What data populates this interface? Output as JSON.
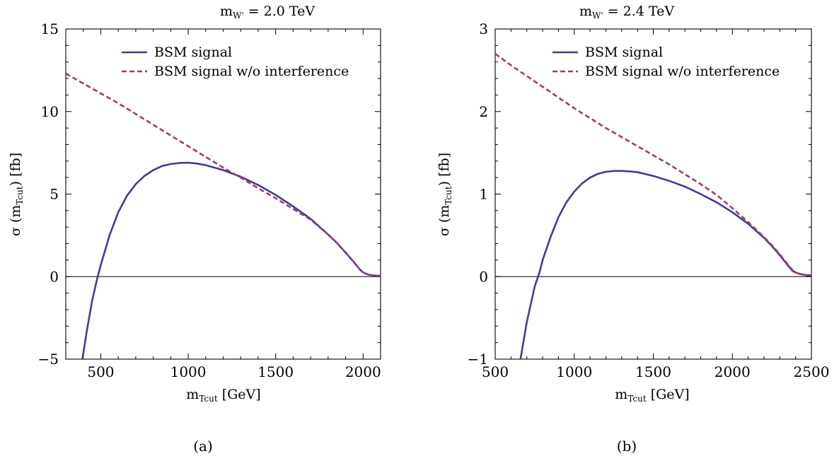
{
  "chart_data": [
    {
      "type": "line",
      "title": "m_W' = 2.0 TeV",
      "title_main": "m",
      "title_sub": "W'",
      "title_rest": " = 2.0 TeV",
      "xlabel_main": "m",
      "xlabel_sub": "Tcut",
      "xlabel_rest": " [GeV]",
      "ylabel_pre": "σ (m",
      "ylabel_sub": "Tcut",
      "ylabel_post": ")  [fb]",
      "xlim": [
        300,
        2100
      ],
      "ylim": [
        -5,
        15
      ],
      "xticks": [
        500,
        1000,
        1500,
        2000
      ],
      "yticks": [
        -5,
        0,
        5,
        10,
        15
      ],
      "ytick_labels": [
        "−5",
        "0",
        "5",
        "10",
        "15"
      ],
      "legend_position": "top-right",
      "caption": "(a)",
      "series": [
        {
          "name": "BSM signal",
          "style": "solid",
          "color": "#3d3d99",
          "x": [
            395,
            420,
            450,
            480,
            500,
            550,
            600,
            650,
            700,
            750,
            800,
            850,
            900,
            950,
            1000,
            1050,
            1100,
            1200,
            1300,
            1400,
            1500,
            1600,
            1700,
            1800,
            1850,
            1900,
            1950,
            1980,
            2000,
            2030,
            2060,
            2100
          ],
          "y": [
            -5.0,
            -3.3,
            -1.5,
            -0.1,
            0.7,
            2.5,
            3.9,
            4.9,
            5.6,
            6.1,
            6.45,
            6.7,
            6.82,
            6.88,
            6.9,
            6.85,
            6.75,
            6.45,
            6.05,
            5.55,
            4.95,
            4.25,
            3.5,
            2.55,
            2.05,
            1.45,
            0.85,
            0.45,
            0.25,
            0.12,
            0.07,
            0.05
          ]
        },
        {
          "name": "BSM signal w/o interference",
          "style": "dashed",
          "color": "#9e3d6e",
          "x": [
            300,
            400,
            500,
            600,
            700,
            800,
            900,
            1000,
            1100,
            1200,
            1300,
            1400,
            1500,
            1600,
            1700,
            1800,
            1850,
            1900,
            1950,
            1980,
            2000,
            2030,
            2060,
            2100
          ],
          "y": [
            12.3,
            11.7,
            11.1,
            10.5,
            9.85,
            9.2,
            8.55,
            7.9,
            7.25,
            6.6,
            6.0,
            5.35,
            4.75,
            4.1,
            3.45,
            2.55,
            2.05,
            1.45,
            0.85,
            0.45,
            0.25,
            0.12,
            0.07,
            0.05
          ]
        }
      ]
    },
    {
      "type": "line",
      "title": "m_W' = 2.4 TeV",
      "title_main": "m",
      "title_sub": "W'",
      "title_rest": " = 2.4 TeV",
      "xlabel_main": "m",
      "xlabel_sub": "Tcut",
      "xlabel_rest": " [GeV]",
      "ylabel_pre": "σ (m",
      "ylabel_sub": "Tcut",
      "ylabel_post": ")  [fb]",
      "xlim": [
        500,
        2500
      ],
      "ylim": [
        -1,
        3
      ],
      "xticks": [
        500,
        1000,
        1500,
        2000,
        2500
      ],
      "yticks": [
        -1,
        0,
        1,
        2,
        3
      ],
      "ytick_labels": [
        "−1",
        "0",
        "1",
        "2",
        "3"
      ],
      "legend_position": "top-right",
      "caption": "(b)",
      "series": [
        {
          "name": "BSM signal",
          "style": "solid",
          "color": "#3d3d99",
          "x": [
            660,
            700,
            750,
            780,
            800,
            850,
            900,
            950,
            1000,
            1050,
            1100,
            1150,
            1200,
            1250,
            1300,
            1350,
            1400,
            1500,
            1600,
            1700,
            1800,
            1900,
            2000,
            2100,
            2200,
            2250,
            2300,
            2350,
            2380,
            2400,
            2430,
            2460,
            2500
          ],
          "y": [
            -1.0,
            -0.55,
            -0.12,
            0.05,
            0.2,
            0.48,
            0.72,
            0.9,
            1.03,
            1.13,
            1.2,
            1.245,
            1.27,
            1.28,
            1.28,
            1.275,
            1.265,
            1.22,
            1.16,
            1.09,
            1.0,
            0.9,
            0.78,
            0.64,
            0.47,
            0.37,
            0.26,
            0.14,
            0.07,
            0.05,
            0.03,
            0.02,
            0.015
          ]
        },
        {
          "name": "BSM signal w/o interference",
          "style": "dashed",
          "color": "#9e3d6e",
          "x": [
            500,
            600,
            700,
            800,
            900,
            1000,
            1100,
            1200,
            1300,
            1400,
            1500,
            1600,
            1700,
            1800,
            1900,
            2000,
            2100,
            2200,
            2250,
            2300,
            2350,
            2380,
            2400,
            2430,
            2460,
            2500
          ],
          "y": [
            2.7,
            2.56,
            2.43,
            2.3,
            2.17,
            2.04,
            1.92,
            1.8,
            1.69,
            1.58,
            1.47,
            1.36,
            1.24,
            1.12,
            0.99,
            0.83,
            0.66,
            0.48,
            0.38,
            0.27,
            0.15,
            0.08,
            0.05,
            0.03,
            0.02,
            0.015
          ]
        }
      ]
    }
  ]
}
